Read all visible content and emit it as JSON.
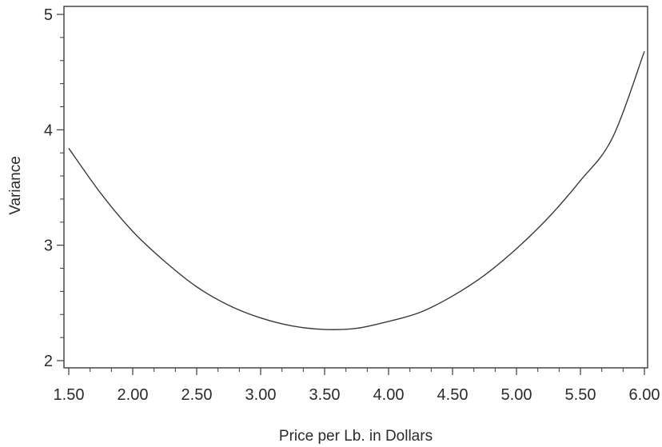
{
  "chart_data": {
    "type": "line",
    "title": "",
    "xlabel": "Price per Lb. in Dollars",
    "ylabel": "Variance",
    "xlim": [
      1.5,
      6.0
    ],
    "ylim": [
      2,
      5
    ],
    "x_ticks": [
      1.5,
      2.0,
      2.5,
      3.0,
      3.5,
      4.0,
      4.5,
      5.0,
      5.5,
      6.0
    ],
    "x_tick_labels": [
      "1.50",
      "2.00",
      "2.50",
      "3.00",
      "3.50",
      "4.00",
      "4.50",
      "5.00",
      "5.50",
      "6.00"
    ],
    "y_ticks": [
      2,
      3,
      4,
      5
    ],
    "y_tick_labels": [
      "2",
      "3",
      "4",
      "5"
    ],
    "grid": false,
    "legend": "none",
    "line_color": "#3a3a3a",
    "series": [
      {
        "x": [
          1.5,
          1.75,
          2.0,
          2.25,
          2.5,
          2.75,
          3.0,
          3.25,
          3.5,
          3.75,
          4.0,
          4.25,
          4.5,
          4.75,
          5.0,
          5.25,
          5.5,
          5.75,
          6.0
        ],
        "y": [
          3.84,
          3.45,
          3.12,
          2.86,
          2.64,
          2.48,
          2.37,
          2.3,
          2.27,
          2.28,
          2.34,
          2.42,
          2.56,
          2.74,
          2.97,
          3.24,
          3.56,
          3.93,
          4.68
        ]
      }
    ]
  }
}
